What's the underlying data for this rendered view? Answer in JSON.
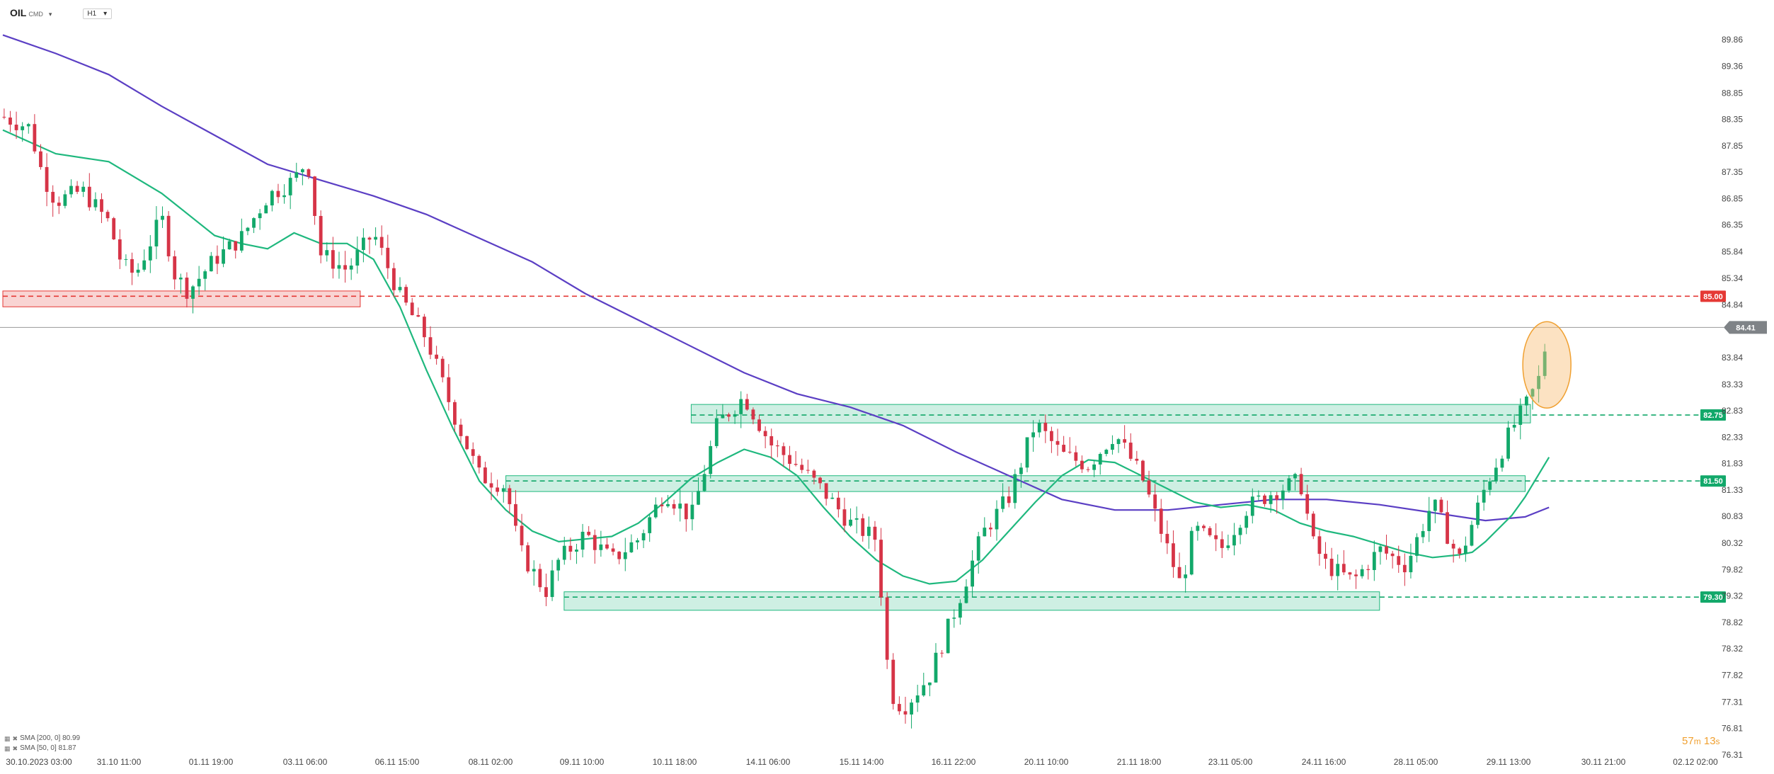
{
  "symbol": "OIL",
  "symbol_sub": "CMD",
  "timeframe": "H1",
  "indicators": [
    {
      "label": "SMA [200, 0] 80.99",
      "color": "#5b3fc4"
    },
    {
      "label": "SMA [50, 0] 81.87",
      "color": "#1fb87e"
    }
  ],
  "timer": {
    "minutes": "57",
    "m_unit": "m",
    "seconds": "13",
    "s_unit": "s"
  },
  "chart_data": {
    "type": "candlestick",
    "y_axis": {
      "side": "right",
      "range": [
        76.31,
        90.2
      ],
      "ticks": [
        "89.86",
        "89.36",
        "88.85",
        "88.35",
        "87.85",
        "87.35",
        "86.85",
        "86.35",
        "85.84",
        "85.34",
        "84.84",
        "83.84",
        "83.33",
        "82.83",
        "82.33",
        "81.83",
        "81.33",
        "80.83",
        "80.32",
        "79.82",
        "79.32",
        "78.82",
        "78.32",
        "77.82",
        "77.31",
        "76.81",
        "76.31"
      ]
    },
    "x_axis": {
      "ticks": [
        "30.10.2023 03:00",
        "31.10 11:00",
        "01.11 19:00",
        "03.11 06:00",
        "06.11 15:00",
        "08.11 02:00",
        "09.11 10:00",
        "10.11 18:00",
        "14.11 06:00",
        "15.11 14:00",
        "16.11 22:00",
        "20.11 10:00",
        "21.11 18:00",
        "23.11 05:00",
        "24.11 16:00",
        "28.11 05:00",
        "29.11 13:00",
        "30.11 21:00",
        "02.12 02:00"
      ]
    },
    "current_price": {
      "label": "84.41",
      "value": 84.41
    },
    "levels": [
      {
        "label": "85.00",
        "value": 85.0,
        "color": "#e53935"
      },
      {
        "label": "82.75",
        "value": 82.75,
        "color": "#12a86a"
      },
      {
        "label": "81.50",
        "value": 81.5,
        "color": "#12a86a"
      },
      {
        "label": "79.30",
        "value": 79.3,
        "color": "#12a86a"
      }
    ],
    "zones": [
      {
        "from": 0,
        "to": 13.5,
        "low": 84.8,
        "high": 85.1,
        "color": "red"
      },
      {
        "from": 19.0,
        "to": 57.5,
        "low": 81.3,
        "high": 81.6,
        "color": "green"
      },
      {
        "from": 26.0,
        "to": 57.7,
        "low": 82.6,
        "high": 82.95,
        "color": "green"
      },
      {
        "from": 21.2,
        "to": 52.0,
        "low": 79.05,
        "high": 79.4,
        "color": "green"
      }
    ],
    "highlight": {
      "x": 58.4,
      "price": 83.7
    },
    "series": [
      {
        "name": "SMA [200, 0]",
        "color": "#5b3fc4",
        "points": [
          [
            0,
            89.95
          ],
          [
            2,
            89.6
          ],
          [
            4,
            89.2
          ],
          [
            6,
            88.6
          ],
          [
            8,
            88.05
          ],
          [
            10,
            87.5
          ],
          [
            12,
            87.2
          ],
          [
            14,
            86.9
          ],
          [
            16,
            86.55
          ],
          [
            18,
            86.1
          ],
          [
            20,
            85.65
          ],
          [
            22,
            85.05
          ],
          [
            24,
            84.55
          ],
          [
            26,
            84.05
          ],
          [
            28,
            83.55
          ],
          [
            30,
            83.15
          ],
          [
            32,
            82.9
          ],
          [
            34,
            82.55
          ],
          [
            36,
            82.05
          ],
          [
            38,
            81.6
          ],
          [
            40,
            81.15
          ],
          [
            42,
            80.95
          ],
          [
            44,
            80.95
          ],
          [
            46,
            81.05
          ],
          [
            48,
            81.15
          ],
          [
            50,
            81.15
          ],
          [
            52,
            81.05
          ],
          [
            54,
            80.9
          ],
          [
            56,
            80.75
          ],
          [
            57.5,
            80.82
          ],
          [
            58.4,
            81.0
          ]
        ]
      },
      {
        "name": "SMA [50, 0]",
        "color": "#1fb87e",
        "points": [
          [
            0,
            88.15
          ],
          [
            2,
            87.7
          ],
          [
            4,
            87.55
          ],
          [
            6,
            86.95
          ],
          [
            8,
            86.15
          ],
          [
            9,
            86.0
          ],
          [
            10,
            85.9
          ],
          [
            11,
            86.2
          ],
          [
            12,
            86.0
          ],
          [
            13,
            86.0
          ],
          [
            14,
            85.7
          ],
          [
            15,
            84.8
          ],
          [
            16,
            83.6
          ],
          [
            17,
            82.5
          ],
          [
            18,
            81.5
          ],
          [
            19,
            80.95
          ],
          [
            20,
            80.55
          ],
          [
            21,
            80.35
          ],
          [
            22,
            80.4
          ],
          [
            23,
            80.45
          ],
          [
            24,
            80.7
          ],
          [
            25,
            81.1
          ],
          [
            26,
            81.55
          ],
          [
            27,
            81.85
          ],
          [
            28,
            82.1
          ],
          [
            29,
            81.95
          ],
          [
            30,
            81.6
          ],
          [
            31,
            81.0
          ],
          [
            32,
            80.45
          ],
          [
            33,
            80.0
          ],
          [
            34,
            79.7
          ],
          [
            35,
            79.55
          ],
          [
            36,
            79.6
          ],
          [
            37,
            80.0
          ],
          [
            38,
            80.55
          ],
          [
            39,
            81.1
          ],
          [
            40,
            81.6
          ],
          [
            41,
            81.9
          ],
          [
            42,
            81.85
          ],
          [
            43,
            81.6
          ],
          [
            44,
            81.35
          ],
          [
            45,
            81.1
          ],
          [
            46,
            81.0
          ],
          [
            47,
            81.05
          ],
          [
            48,
            80.95
          ],
          [
            49,
            80.7
          ],
          [
            50,
            80.55
          ],
          [
            51,
            80.45
          ],
          [
            52,
            80.3
          ],
          [
            53,
            80.15
          ],
          [
            54,
            80.05
          ],
          [
            55,
            80.1
          ],
          [
            55.5,
            80.15
          ],
          [
            56,
            80.35
          ],
          [
            57,
            80.85
          ],
          [
            57.5,
            81.2
          ],
          [
            58.4,
            81.95
          ]
        ]
      },
      {
        "name": "price",
        "points": [
          [
            0,
            88.4
          ],
          [
            1,
            88.2
          ],
          [
            1.5,
            87.3
          ],
          [
            2,
            86.8
          ],
          [
            3,
            87.0
          ],
          [
            4,
            86.4
          ],
          [
            4.5,
            85.6
          ],
          [
            5,
            85.4
          ],
          [
            6,
            86.5
          ],
          [
            6.5,
            85.4
          ],
          [
            7,
            85.1
          ],
          [
            8,
            85.7
          ],
          [
            9,
            86.1
          ],
          [
            10,
            86.9
          ],
          [
            11,
            87.2
          ],
          [
            11.5,
            87.6
          ],
          [
            12,
            85.8
          ],
          [
            13,
            85.5
          ],
          [
            14,
            86.2
          ],
          [
            14.5,
            85.6
          ],
          [
            15,
            85.0
          ],
          [
            16,
            84.2
          ],
          [
            17,
            82.8
          ],
          [
            18,
            81.6
          ],
          [
            19,
            81.4
          ],
          [
            19.5,
            80.2
          ],
          [
            20,
            79.8
          ],
          [
            20.5,
            79.4
          ],
          [
            21,
            80.0
          ],
          [
            22,
            80.5
          ],
          [
            23,
            80.0
          ],
          [
            24,
            80.4
          ],
          [
            25,
            81.3
          ],
          [
            26,
            80.8
          ],
          [
            27,
            82.6
          ],
          [
            28,
            83.1
          ],
          [
            29,
            82.2
          ],
          [
            30,
            81.8
          ],
          [
            31,
            81.3
          ],
          [
            32,
            80.7
          ],
          [
            33,
            80.4
          ],
          [
            33.5,
            77.5
          ],
          [
            34,
            77.2
          ],
          [
            35,
            77.8
          ],
          [
            36,
            79.1
          ],
          [
            37,
            80.5
          ],
          [
            38,
            81.2
          ],
          [
            39,
            82.6
          ],
          [
            40,
            82.0
          ],
          [
            41,
            81.8
          ],
          [
            42,
            82.4
          ],
          [
            43,
            81.6
          ],
          [
            44,
            80.2
          ],
          [
            44.5,
            79.5
          ],
          [
            45,
            80.6
          ],
          [
            46,
            80.2
          ],
          [
            47,
            81.0
          ],
          [
            48,
            81.3
          ],
          [
            49,
            81.5
          ],
          [
            49.5,
            80.3
          ],
          [
            50,
            79.9
          ],
          [
            51,
            79.6
          ],
          [
            52,
            80.2
          ],
          [
            53,
            79.9
          ],
          [
            54,
            81.1
          ],
          [
            55,
            80.0
          ],
          [
            56,
            81.4
          ],
          [
            57,
            82.5
          ],
          [
            57.5,
            82.9
          ],
          [
            58,
            83.4
          ],
          [
            58.4,
            84.41
          ]
        ]
      }
    ],
    "grid": false,
    "legend_placement": "bottom-left"
  }
}
